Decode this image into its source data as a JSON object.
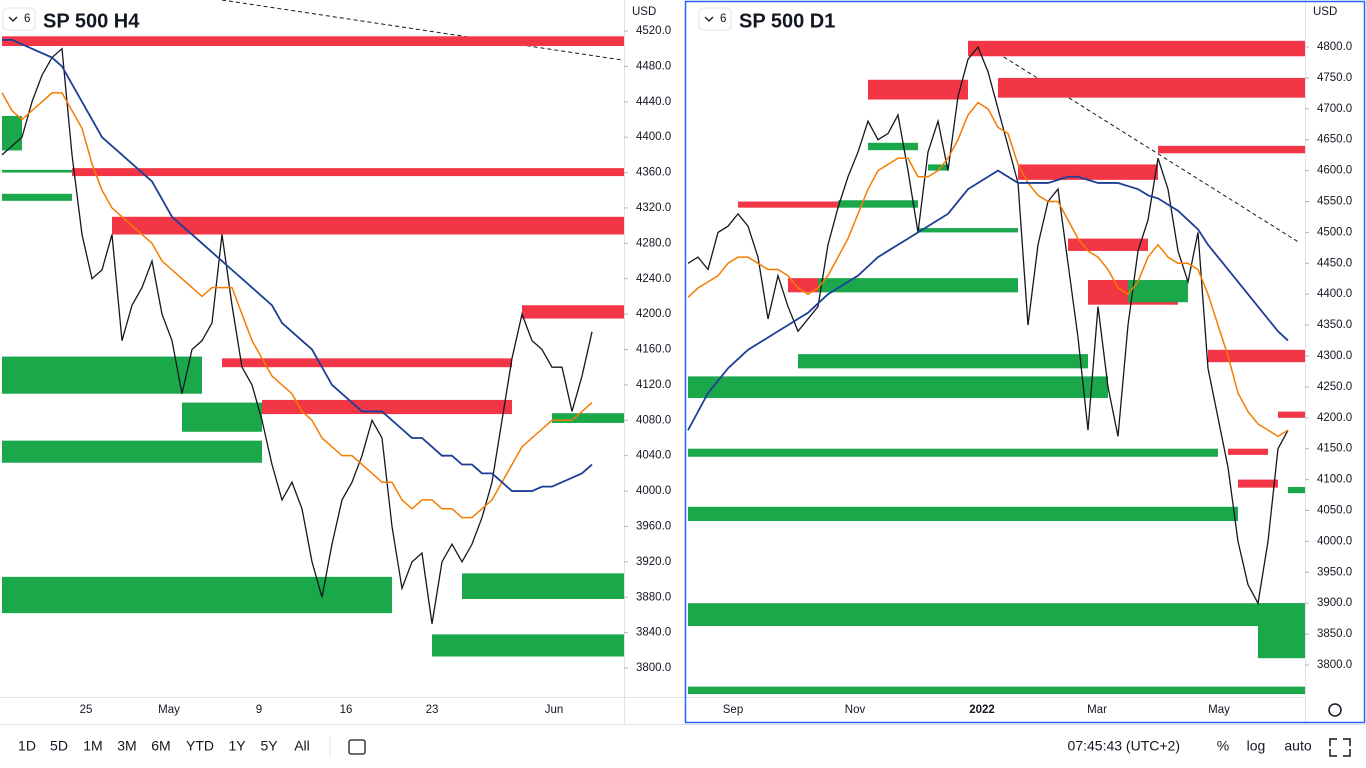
{
  "panels": [
    {
      "interval_badge": "6",
      "title": "SP 500 H4",
      "currency": "USD",
      "price_ticks": [
        {
          "value": 4520,
          "label": "4520.0"
        },
        {
          "value": 4480,
          "label": "4480.0"
        },
        {
          "value": 4440,
          "label": "4440.0"
        },
        {
          "value": 4400,
          "label": "4400.0"
        },
        {
          "value": 4360,
          "label": "4360.0"
        },
        {
          "value": 4320,
          "label": "4320.0"
        },
        {
          "value": 4280,
          "label": "4280.0"
        },
        {
          "value": 4240,
          "label": "4240.0"
        },
        {
          "value": 4200,
          "label": "4200.0"
        },
        {
          "value": 4160,
          "label": "4160.0"
        },
        {
          "value": 4120,
          "label": "4120.0"
        },
        {
          "value": 4080,
          "label": "4080.0"
        },
        {
          "value": 4040,
          "label": "4040.0"
        },
        {
          "value": 4000,
          "label": "4000.0"
        },
        {
          "value": 3960,
          "label": "3960.0"
        },
        {
          "value": 3920,
          "label": "3920.0"
        },
        {
          "value": 3880,
          "label": "3880.0"
        },
        {
          "value": 3840,
          "label": "3840.0"
        },
        {
          "value": 3800,
          "label": "3800.0"
        }
      ],
      "time_labels": [
        "25",
        "May",
        "9",
        "16",
        "23",
        "Jun"
      ],
      "closes": [
        4380,
        4390,
        4400,
        4440,
        4470,
        4490,
        4500,
        4380,
        4290,
        4240,
        4250,
        4290,
        4170,
        4210,
        4230,
        4260,
        4200,
        4170,
        4110,
        4160,
        4170,
        4190,
        4290,
        4210,
        4140,
        4120,
        4080,
        4030,
        3990,
        4010,
        3980,
        3920,
        3880,
        3940,
        3990,
        4010,
        4040,
        4080,
        4060,
        3960,
        3890,
        3920,
        3930,
        3850,
        3920,
        3940,
        3920,
        3940,
        3970,
        4010,
        4080,
        4150,
        4200,
        4170,
        4160,
        4140,
        4140,
        4090,
        4130,
        4180
      ],
      "ma_fast": [
        4450,
        4430,
        4420,
        4430,
        4440,
        4450,
        4450,
        4430,
        4410,
        4370,
        4340,
        4320,
        4310,
        4300,
        4290,
        4280,
        4260,
        4250,
        4240,
        4230,
        4220,
        4230,
        4230,
        4230,
        4200,
        4170,
        4150,
        4130,
        4120,
        4110,
        4090,
        4080,
        4060,
        4050,
        4040,
        4040,
        4030,
        4020,
        4010,
        4010,
        3990,
        3980,
        3990,
        3990,
        3980,
        3980,
        3970,
        3970,
        3980,
        3990,
        4010,
        4030,
        4050,
        4060,
        4070,
        4080,
        4080,
        4080,
        4090,
        4100
      ],
      "ma_slow": [
        4510,
        4510,
        4505,
        4500,
        4495,
        4490,
        4480,
        4460,
        4440,
        4420,
        4400,
        4390,
        4380,
        4370,
        4360,
        4350,
        4330,
        4310,
        4300,
        4290,
        4280,
        4270,
        4260,
        4250,
        4240,
        4230,
        4220,
        4210,
        4190,
        4180,
        4170,
        4160,
        4140,
        4120,
        4110,
        4100,
        4090,
        4090,
        4090,
        4080,
        4070,
        4060,
        4060,
        4050,
        4040,
        4040,
        4030,
        4030,
        4020,
        4020,
        4010,
        4000,
        4000,
        4000,
        4005,
        4005,
        4010,
        4015,
        4020,
        4030
      ],
      "zones": [
        {
          "kind": "supply",
          "from": 0,
          "top": 4514,
          "bottom": 4503
        },
        {
          "kind": "supply",
          "from": 7,
          "top": 4365,
          "bottom": 4356
        },
        {
          "kind": "supply",
          "from": 11,
          "top": 4310,
          "bottom": 4290
        },
        {
          "kind": "supply",
          "from": 52,
          "top": 4210,
          "bottom": 4195
        },
        {
          "kind": "supply",
          "from": 22,
          "to": 51,
          "top": 4150,
          "bottom": 4140
        },
        {
          "kind": "supply",
          "from": 26,
          "to": 51,
          "top": 4103,
          "bottom": 4087
        },
        {
          "kind": "demand",
          "from": 0,
          "to": 2,
          "top": 4424,
          "bottom": 4385
        },
        {
          "kind": "demand",
          "from": 0,
          "to": 7,
          "top": 4363,
          "bottom": 4360
        },
        {
          "kind": "demand",
          "from": 0,
          "to": 7,
          "top": 4336,
          "bottom": 4328
        },
        {
          "kind": "demand",
          "from": 0,
          "to": 20,
          "top": 4152,
          "bottom": 4110
        },
        {
          "kind": "demand",
          "from": 18,
          "to": 26,
          "top": 4100,
          "bottom": 4067
        },
        {
          "kind": "demand",
          "from": 0,
          "to": 26,
          "top": 4057,
          "bottom": 4032
        },
        {
          "kind": "demand",
          "from": 55,
          "top": 4088,
          "bottom": 4077
        },
        {
          "kind": "demand",
          "from": 0,
          "to": 39,
          "top": 3903,
          "bottom": 3862
        },
        {
          "kind": "demand",
          "from": 46,
          "top": 3907,
          "bottom": 3878
        },
        {
          "kind": "demand",
          "from": 43,
          "top": 3838,
          "bottom": 3813
        }
      ]
    },
    {
      "interval_badge": "6",
      "title": "SP 500 D1",
      "currency": "USD",
      "price_ticks": [
        {
          "value": 4800,
          "label": "4800.0"
        },
        {
          "value": 4750,
          "label": "4750.0"
        },
        {
          "value": 4700,
          "label": "4700.0"
        },
        {
          "value": 4650,
          "label": "4650.0"
        },
        {
          "value": 4600,
          "label": "4600.0"
        },
        {
          "value": 4550,
          "label": "4550.0"
        },
        {
          "value": 4500,
          "label": "4500.0"
        },
        {
          "value": 4450,
          "label": "4450.0"
        },
        {
          "value": 4400,
          "label": "4400.0"
        },
        {
          "value": 4350,
          "label": "4350.0"
        },
        {
          "value": 4300,
          "label": "4300.0"
        },
        {
          "value": 4250,
          "label": "4250.0"
        },
        {
          "value": 4200,
          "label": "4200.0"
        },
        {
          "value": 4150,
          "label": "4150.0"
        },
        {
          "value": 4100,
          "label": "4100.0"
        },
        {
          "value": 4050,
          "label": "4050.0"
        },
        {
          "value": 4000,
          "label": "4000.0"
        },
        {
          "value": 3950,
          "label": "3950.0"
        },
        {
          "value": 3900,
          "label": "3900.0"
        },
        {
          "value": 3850,
          "label": "3850.0"
        },
        {
          "value": 3800,
          "label": "3800.0"
        }
      ],
      "time_labels": [
        "Sep",
        "Nov",
        "2022",
        "Mar",
        "May"
      ],
      "closes": [
        4450,
        4460,
        4440,
        4500,
        4510,
        4530,
        4510,
        4460,
        4360,
        4430,
        4380,
        4340,
        4360,
        4380,
        4480,
        4540,
        4590,
        4630,
        4680,
        4650,
        4660,
        4690,
        4600,
        4500,
        4630,
        4680,
        4600,
        4720,
        4780,
        4800,
        4760,
        4700,
        4640,
        4580,
        4350,
        4480,
        4550,
        4570,
        4450,
        4330,
        4180,
        4380,
        4250,
        4170,
        4350,
        4470,
        4520,
        4620,
        4570,
        4470,
        4420,
        4500,
        4280,
        4200,
        4120,
        4000,
        3930,
        3900,
        4000,
        4150,
        4180
      ],
      "ma_fast": [
        4395,
        4410,
        4420,
        4430,
        4450,
        4460,
        4460,
        4450,
        4440,
        4440,
        4430,
        4410,
        4400,
        4410,
        4430,
        4460,
        4490,
        4530,
        4570,
        4600,
        4610,
        4620,
        4620,
        4590,
        4590,
        4600,
        4620,
        4650,
        4690,
        4710,
        4700,
        4670,
        4660,
        4610,
        4580,
        4560,
        4550,
        4550,
        4520,
        4490,
        4470,
        4460,
        4440,
        4410,
        4400,
        4420,
        4460,
        4480,
        4460,
        4450,
        4450,
        4440,
        4400,
        4350,
        4300,
        4240,
        4210,
        4190,
        4180,
        4170,
        4180
      ],
      "ma_slow": [
        4180,
        4210,
        4240,
        4260,
        4280,
        4295,
        4310,
        4320,
        4330,
        4340,
        4350,
        4360,
        4370,
        4385,
        4400,
        4410,
        4420,
        4430,
        4445,
        4460,
        4470,
        4480,
        4490,
        4500,
        4510,
        4520,
        4530,
        4550,
        4570,
        4580,
        4590,
        4600,
        4590,
        4580,
        4580,
        4580,
        4580,
        4585,
        4590,
        4590,
        4585,
        4580,
        4580,
        4580,
        4575,
        4570,
        4560,
        4555,
        4545,
        4535,
        4520,
        4505,
        4480,
        4460,
        4440,
        4420,
        4400,
        4380,
        4360,
        4340,
        4325
      ],
      "zones": [
        {
          "kind": "supply",
          "from": 28,
          "top": 4810,
          "bottom": 4785
        },
        {
          "kind": "supply",
          "from": 31,
          "top": 4750,
          "bottom": 4718
        },
        {
          "kind": "supply",
          "from": 18,
          "to": 28,
          "top": 4747,
          "bottom": 4715
        },
        {
          "kind": "supply",
          "from": 47,
          "top": 4640,
          "bottom": 4628
        },
        {
          "kind": "supply",
          "from": 33,
          "to": 47,
          "top": 4610,
          "bottom": 4585
        },
        {
          "kind": "supply",
          "from": 5,
          "to": 15,
          "top": 4550,
          "bottom": 4540
        },
        {
          "kind": "supply",
          "from": 38,
          "to": 46,
          "top": 4490,
          "bottom": 4470
        },
        {
          "kind": "supply",
          "from": 40,
          "to": 49,
          "top": 4423,
          "bottom": 4383
        },
        {
          "kind": "supply",
          "from": 10,
          "to": 13,
          "top": 4426,
          "bottom": 4403
        },
        {
          "kind": "supply",
          "from": 52,
          "top": 4310,
          "bottom": 4290
        },
        {
          "kind": "supply",
          "from": 59,
          "top": 4210,
          "bottom": 4200
        },
        {
          "kind": "supply",
          "from": 54,
          "to": 58,
          "top": 4150,
          "bottom": 4140
        },
        {
          "kind": "supply",
          "from": 55,
          "to": 59,
          "top": 4100,
          "bottom": 4087
        },
        {
          "kind": "demand",
          "from": 18,
          "to": 23,
          "top": 4645,
          "bottom": 4633
        },
        {
          "kind": "demand",
          "from": 15,
          "to": 23,
          "top": 4552,
          "bottom": 4540
        },
        {
          "kind": "demand",
          "from": 24,
          "to": 26,
          "top": 4610,
          "bottom": 4600
        },
        {
          "kind": "demand",
          "from": 23,
          "to": 33,
          "top": 4507,
          "bottom": 4500
        },
        {
          "kind": "demand",
          "from": 13,
          "to": 33,
          "top": 4426,
          "bottom": 4403
        },
        {
          "kind": "demand",
          "from": 44,
          "to": 50,
          "top": 4423,
          "bottom": 4387
        },
        {
          "kind": "demand",
          "from": 11,
          "to": 40,
          "top": 4303,
          "bottom": 4280
        },
        {
          "kind": "demand",
          "from": 0,
          "to": 42,
          "top": 4267,
          "bottom": 4232
        },
        {
          "kind": "demand",
          "from": 0,
          "to": 53,
          "top": 4150,
          "bottom": 4137
        },
        {
          "kind": "demand",
          "from": 0,
          "to": 55,
          "top": 4056,
          "bottom": 4033
        },
        {
          "kind": "demand",
          "from": 0,
          "top": 3900,
          "bottom": 3863
        },
        {
          "kind": "demand",
          "from": 57,
          "top": 3900,
          "bottom": 3811
        },
        {
          "kind": "demand",
          "from": 0,
          "top": 3765,
          "bottom": 3753
        },
        {
          "kind": "demand",
          "from": 60,
          "top": 4088,
          "bottom": 4078
        }
      ]
    }
  ],
  "toolbar": {
    "ranges": [
      "1D",
      "5D",
      "1M",
      "3M",
      "6M",
      "YTD",
      "1Y",
      "5Y",
      "All"
    ],
    "clock": "07:45:43 (UTC+2)",
    "options": [
      "%",
      "log",
      "auto"
    ]
  }
}
